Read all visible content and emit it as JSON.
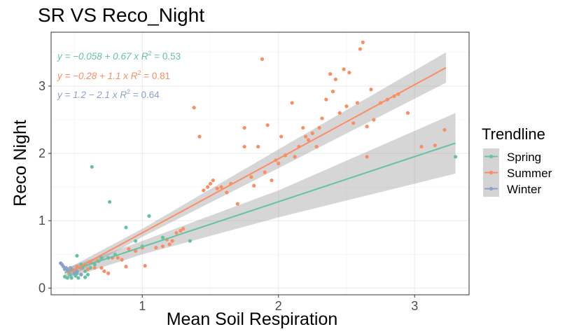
{
  "chart_data": {
    "type": "scatter",
    "title": "SR VS Reco_Night",
    "xlabel": "Mean Soil Respiration",
    "ylabel": "Reco Night",
    "xlim": [
      0.33,
      3.4
    ],
    "ylim": [
      -0.1,
      3.8
    ],
    "x_ticks": [
      1,
      2,
      3
    ],
    "x_tick_labels": [
      "1",
      "2",
      "3"
    ],
    "y_ticks": [
      0,
      1,
      2,
      3
    ],
    "y_tick_labels": [
      "0",
      "1",
      "2",
      "3"
    ],
    "grid": true,
    "legend": {
      "title": "Trendline",
      "position": "right"
    },
    "series": [
      {
        "name": "Spring",
        "color": "#66c2a5",
        "equation": {
          "prefix": "y = −0.058 + 0.67 x",
          "r2_label": "R",
          "r2_value": " = 0.53"
        },
        "fit": {
          "intercept": -0.058,
          "slope": 0.67,
          "x_range": [
            0.43,
            3.3
          ]
        },
        "ci": [
          {
            "x": 0.43,
            "lo": 0.13,
            "hi": 0.29
          },
          {
            "x": 1.0,
            "lo": 0.5,
            "hi": 0.7
          },
          {
            "x": 2.0,
            "lo": 1.05,
            "hi": 1.45
          },
          {
            "x": 3.3,
            "lo": 1.7,
            "hi": 2.6
          }
        ],
        "points": [
          [
            0.43,
            0.17
          ],
          [
            0.45,
            0.15
          ],
          [
            0.47,
            0.2
          ],
          [
            0.48,
            0.15
          ],
          [
            0.5,
            0.25
          ],
          [
            0.51,
            0.18
          ],
          [
            0.52,
            0.22
          ],
          [
            0.53,
            0.15
          ],
          [
            0.55,
            0.2
          ],
          [
            0.56,
            0.3
          ],
          [
            0.58,
            0.25
          ],
          [
            0.6,
            0.2
          ],
          [
            0.62,
            0.3
          ],
          [
            0.65,
            0.35
          ],
          [
            0.68,
            0.4
          ],
          [
            0.7,
            0.45
          ],
          [
            0.75,
            0.45
          ],
          [
            0.8,
            0.5
          ],
          [
            0.52,
            0.48
          ],
          [
            0.55,
            0.35
          ],
          [
            0.47,
            0.3
          ],
          [
            0.58,
            0.16
          ],
          [
            0.63,
            1.8
          ],
          [
            0.76,
            1.28
          ],
          [
            0.88,
            0.9
          ],
          [
            0.95,
            0.7
          ],
          [
            1.05,
            1.07
          ],
          [
            1.15,
            0.75
          ],
          [
            1.35,
            0.7
          ],
          [
            1.0,
            0.62
          ],
          [
            3.3,
            1.95
          ]
        ]
      },
      {
        "name": "Summer",
        "color": "#fc8d62",
        "equation": {
          "prefix": "y = −0.28 + 1.1 x",
          "r2_label": "R",
          "r2_value": " = 0.81"
        },
        "fit": {
          "intercept": -0.28,
          "slope": 1.1,
          "x_range": [
            0.45,
            3.23
          ]
        },
        "ci": [
          {
            "x": 0.45,
            "lo": 0.14,
            "hi": 0.29
          },
          {
            "x": 1.0,
            "lo": 0.76,
            "hi": 0.88
          },
          {
            "x": 2.0,
            "lo": 1.78,
            "hi": 2.06
          },
          {
            "x": 3.23,
            "lo": 3.05,
            "hi": 3.5
          }
        ],
        "points": [
          [
            0.47,
            0.28
          ],
          [
            0.5,
            0.25
          ],
          [
            0.52,
            0.32
          ],
          [
            0.55,
            0.3
          ],
          [
            0.58,
            0.35
          ],
          [
            0.6,
            0.28
          ],
          [
            0.62,
            0.38
          ],
          [
            0.65,
            0.3
          ],
          [
            0.67,
            0.4
          ],
          [
            0.7,
            0.3
          ],
          [
            0.72,
            0.25
          ],
          [
            0.75,
            0.22
          ],
          [
            0.78,
            0.45
          ],
          [
            0.82,
            0.45
          ],
          [
            0.85,
            0.42
          ],
          [
            0.88,
            0.32
          ],
          [
            0.9,
            0.58
          ],
          [
            0.95,
            0.55
          ],
          [
            1.0,
            0.6
          ],
          [
            1.02,
            0.33
          ],
          [
            1.1,
            0.6
          ],
          [
            1.15,
            0.62
          ],
          [
            1.18,
            0.72
          ],
          [
            1.2,
            0.65
          ],
          [
            1.22,
            0.7
          ],
          [
            1.25,
            0.82
          ],
          [
            1.28,
            0.85
          ],
          [
            1.3,
            0.88
          ],
          [
            1.38,
            2.68
          ],
          [
            1.42,
            2.25
          ],
          [
            1.45,
            1.45
          ],
          [
            1.48,
            1.5
          ],
          [
            1.5,
            1.55
          ],
          [
            1.52,
            1.6
          ],
          [
            1.55,
            1.48
          ],
          [
            1.58,
            1.5
          ],
          [
            1.62,
            1.42
          ],
          [
            1.65,
            1.55
          ],
          [
            1.7,
            1.25
          ],
          [
            1.75,
            2.38
          ],
          [
            1.75,
            2.1
          ],
          [
            1.8,
            1.65
          ],
          [
            1.82,
            1.52
          ],
          [
            1.85,
            2.1
          ],
          [
            1.88,
            3.4
          ],
          [
            1.9,
            1.72
          ],
          [
            1.92,
            2.42
          ],
          [
            1.95,
            1.6
          ],
          [
            1.98,
            1.9
          ],
          [
            2.0,
            1.85
          ],
          [
            2.02,
            2.25
          ],
          [
            2.05,
            1.97
          ],
          [
            2.1,
            2.75
          ],
          [
            2.12,
            1.95
          ],
          [
            2.15,
            2.1
          ],
          [
            2.18,
            2.38
          ],
          [
            2.2,
            2.25
          ],
          [
            2.22,
            2.2
          ],
          [
            2.25,
            2.3
          ],
          [
            2.28,
            2.1
          ],
          [
            2.3,
            2.38
          ],
          [
            2.32,
            2.52
          ],
          [
            2.35,
            2.8
          ],
          [
            2.38,
            3.18
          ],
          [
            2.4,
            2.92
          ],
          [
            2.42,
            3.1
          ],
          [
            2.45,
            2.6
          ],
          [
            2.48,
            3.25
          ],
          [
            2.5,
            2.7
          ],
          [
            2.52,
            3.2
          ],
          [
            2.55,
            2.45
          ],
          [
            2.58,
            2.75
          ],
          [
            2.6,
            3.55
          ],
          [
            2.62,
            3.65
          ],
          [
            2.65,
            2.4
          ],
          [
            2.68,
            2.95
          ],
          [
            2.7,
            2.5
          ],
          [
            2.75,
            2.75
          ],
          [
            2.8,
            2.8
          ],
          [
            2.85,
            2.85
          ],
          [
            2.88,
            2.88
          ],
          [
            2.95,
            2.6
          ],
          [
            3.05,
            2.1
          ],
          [
            3.15,
            2.12
          ],
          [
            3.22,
            2.35
          ],
          [
            2.65,
            1.95
          ]
        ]
      },
      {
        "name": "Winter",
        "color": "#8da0cb",
        "equation": {
          "prefix": "y = 1.2 − 2.1 x",
          "r2_label": "R",
          "r2_value": " = 0.64"
        },
        "fit": {
          "intercept": 1.2,
          "slope": -2.1,
          "x_range": [
            0.4,
            0.46
          ]
        },
        "ci": [],
        "points": [
          [
            0.4,
            0.37
          ],
          [
            0.41,
            0.35
          ],
          [
            0.42,
            0.32
          ],
          [
            0.43,
            0.28
          ],
          [
            0.44,
            0.3
          ],
          [
            0.45,
            0.27
          ],
          [
            0.46,
            0.25
          ],
          [
            0.48,
            0.28
          ],
          [
            0.5,
            0.22
          ],
          [
            0.52,
            0.25
          ],
          [
            0.55,
            0.2
          ]
        ]
      }
    ]
  }
}
